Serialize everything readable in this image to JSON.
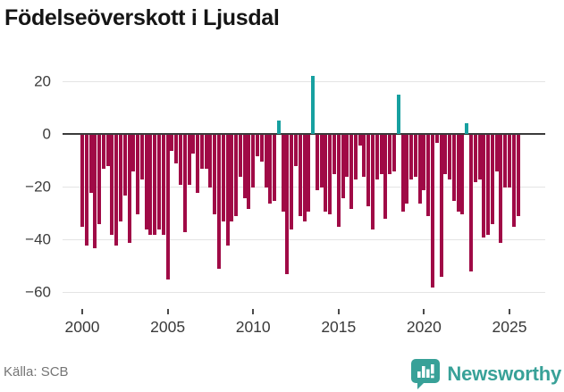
{
  "header": {
    "title": "Födelseöverskott i Ljusdal"
  },
  "footer": {
    "source": "Källa: SCB",
    "brand": "Newsworthy"
  },
  "colors": {
    "negative": "#a00a46",
    "positive": "#17a0a0",
    "axis": "#3b3b3b",
    "grid": "#e4e4e4",
    "tick_text": "#3d3d3d",
    "title_text": "#151515",
    "source_text": "#757575",
    "brand_teal": "#38a198"
  },
  "chart_data": {
    "type": "bar",
    "title": "Födelseöverskott i Ljusdal",
    "frequency": "quarterly",
    "start_period": "2000 Q1",
    "end_period": "2025 Q3",
    "values": [
      -35,
      -42,
      -22,
      -43,
      -34,
      -13,
      -12,
      -38,
      -42,
      -33,
      -23,
      -41,
      -14,
      -30,
      -17,
      -36,
      -38,
      -38,
      -36,
      -38,
      -55,
      -6,
      -11,
      -19,
      -37,
      -19,
      -7,
      -22,
      -13,
      -13,
      -20,
      -30,
      -51,
      -33,
      -42,
      -33,
      -31,
      -16,
      -24,
      -28,
      -20,
      -8,
      -10,
      -20,
      -26,
      -25,
      5,
      -29,
      -53,
      -36,
      -12,
      -31,
      -33,
      -29,
      22,
      -21,
      -20,
      -29,
      -30,
      -15,
      -35,
      -24,
      -16,
      -28,
      -17,
      -4,
      -16,
      -27,
      -36,
      -17,
      -15,
      -32,
      -15,
      -14,
      15,
      -29,
      -26,
      -17,
      -16,
      -26,
      -21,
      -31,
      -58,
      -3,
      -54,
      -15,
      -17,
      -25,
      -29,
      -30,
      4,
      -52,
      -18,
      -17,
      -39,
      -38,
      -34,
      -14,
      -41,
      -20,
      -20,
      -35,
      -31
    ],
    "y_ticks": [
      20,
      0,
      -20,
      -40,
      -60
    ],
    "y_tick_labels": [
      "20",
      "0",
      "−20",
      "−40",
      "−60"
    ],
    "x_tick_labels": [
      "2000",
      "2005",
      "2010",
      "2015",
      "2020",
      "2025"
    ],
    "x_tick_indices": [
      0,
      20,
      40,
      60,
      80,
      100
    ],
    "ylim": [
      -62,
      24
    ],
    "grid": true,
    "legend": null,
    "positive_color": "#17a0a0",
    "negative_color": "#a00a46"
  }
}
